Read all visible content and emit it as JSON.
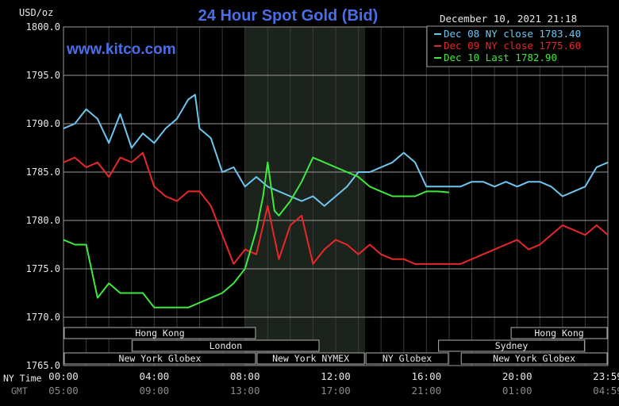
{
  "chart_data": {
    "type": "line",
    "title": "24 Hour Spot Gold (Bid)",
    "website": "www.kitco.com",
    "timestamp": "December 10, 2021 21:18",
    "ylabel": "USD/oz",
    "ylim": [
      1765,
      1800
    ],
    "y_ticks": [
      "1800.0",
      "1795.0",
      "1790.0",
      "1785.0",
      "1780.0",
      "1775.0",
      "1770.0",
      "1765.0"
    ],
    "x_range_hours": [
      0,
      24
    ],
    "x_ticks_ny": [
      "00:00",
      "04:00",
      "08:00",
      "12:00",
      "16:00",
      "20:00",
      "23:59"
    ],
    "x_ticks_gmt": [
      "05:00",
      "09:00",
      "13:00",
      "17:00",
      "21:00",
      "01:00",
      "04:59"
    ],
    "x_row_labels": [
      "NY Time",
      "GMT"
    ],
    "grid": true,
    "legend_position": "top-right",
    "shaded_session_hours": [
      8.0,
      13.3
    ],
    "sessions": [
      {
        "label": "Hong Kong",
        "row": 0,
        "start": 0,
        "end": 8.5
      },
      {
        "label": "Hong Kong",
        "row": 0,
        "start": 19.7,
        "end": 24
      },
      {
        "label": "London",
        "row": 1,
        "start": 3.0,
        "end": 11.3
      },
      {
        "label": "Sydney",
        "row": 1,
        "start": 16.5,
        "end": 23.0
      },
      {
        "label": "New York Globex",
        "row": 2,
        "start": 0,
        "end": 8.5
      },
      {
        "label": "New York NYMEX",
        "row": 2,
        "start": 8.5,
        "end": 13.3
      },
      {
        "label": "NY Globex",
        "row": 2,
        "start": 13.3,
        "end": 17.0
      },
      {
        "label": "New York Globex",
        "row": 2,
        "start": 17.5,
        "end": 24
      }
    ],
    "series": [
      {
        "name": "Dec 08 NY close",
        "legend": "Dec 08 NY close 1783.40",
        "color": "#6ec6ee",
        "x": [
          0,
          0.5,
          1,
          1.5,
          2,
          2.5,
          3,
          3.5,
          4,
          4.5,
          5,
          5.5,
          5.8,
          6,
          6.5,
          7,
          7.5,
          8,
          8.5,
          9,
          9.5,
          10,
          10.5,
          11,
          11.5,
          12,
          12.5,
          13,
          13.5,
          14,
          14.5,
          15,
          15.5,
          16,
          16.5,
          17,
          17.5,
          18,
          18.5,
          19,
          19.5,
          20,
          20.5,
          21,
          21.5,
          22,
          22.5,
          23,
          23.5,
          24
        ],
        "y": [
          1789.5,
          1790,
          1791.5,
          1790.5,
          1788,
          1791,
          1787.5,
          1789,
          1788,
          1789.5,
          1790.5,
          1792.5,
          1793,
          1789.5,
          1788.5,
          1785,
          1785.5,
          1783.5,
          1784.5,
          1783.5,
          1783,
          1782.5,
          1782,
          1782.5,
          1781.5,
          1782.5,
          1783.5,
          1785,
          1785,
          1785.5,
          1786,
          1787,
          1786,
          1783.5,
          1783.5,
          1783.5,
          1783.5,
          1784,
          1784,
          1783.5,
          1784,
          1783.5,
          1784,
          1784,
          1783.5,
          1782.5,
          1783,
          1783.5,
          1785.5,
          1786
        ]
      },
      {
        "name": "Dec 09 NY close",
        "legend": "Dec 09 NY close 1775.60",
        "color": "#e82828",
        "x": [
          0,
          0.5,
          1,
          1.5,
          2,
          2.5,
          3,
          3.5,
          4,
          4.5,
          5,
          5.5,
          6,
          6.5,
          7,
          7.5,
          8,
          8.5,
          9,
          9.5,
          10,
          10.5,
          11,
          11.5,
          12,
          12.5,
          13,
          13.5,
          14,
          14.5,
          15,
          15.5,
          16,
          16.5,
          17,
          17.5,
          18,
          18.5,
          19,
          19.5,
          20,
          20.5,
          21,
          21.5,
          22,
          22.5,
          23,
          23.5,
          24
        ],
        "y": [
          1786,
          1786.5,
          1785.5,
          1786,
          1784.5,
          1786.5,
          1786,
          1787,
          1783.5,
          1782.5,
          1782,
          1783,
          1783,
          1781.5,
          1778.5,
          1775.5,
          1777,
          1776.5,
          1781.5,
          1776,
          1779.5,
          1780.5,
          1775.5,
          1777,
          1778,
          1777.5,
          1776.5,
          1777.5,
          1776.5,
          1776,
          1776,
          1775.5,
          1775.5,
          1775.5,
          1775.5,
          1775.5,
          1776,
          1776.5,
          1777,
          1777.5,
          1778,
          1777,
          1777.5,
          1778.5,
          1779.5,
          1779,
          1778.5,
          1779.5,
          1778.5
        ]
      },
      {
        "name": "Dec 10 Last",
        "legend": "Dec 10 Last 1782.90",
        "color": "#3ee83e",
        "x": [
          0,
          0.5,
          1,
          1.5,
          2,
          2.5,
          3,
          3.5,
          4,
          4.5,
          5,
          5.5,
          6,
          6.5,
          7,
          7.5,
          8,
          8.5,
          8.8,
          9,
          9.3,
          9.5,
          10,
          10.5,
          11,
          11.5,
          12,
          12.5,
          13,
          13.5,
          14,
          14.5,
          15,
          15.5,
          16,
          16.5,
          17
        ],
        "y": [
          1778,
          1777.5,
          1777.5,
          1772,
          1773.5,
          1772.5,
          1772.5,
          1772.5,
          1771,
          1771,
          1771,
          1771,
          1771.5,
          1772,
          1772.5,
          1773.5,
          1775,
          1779,
          1782.5,
          1786,
          1781,
          1780.5,
          1782,
          1784,
          1786.5,
          1786,
          1785.5,
          1785,
          1784.5,
          1783.5,
          1783,
          1782.5,
          1782.5,
          1782.5,
          1783,
          1783,
          1782.9
        ]
      }
    ]
  }
}
